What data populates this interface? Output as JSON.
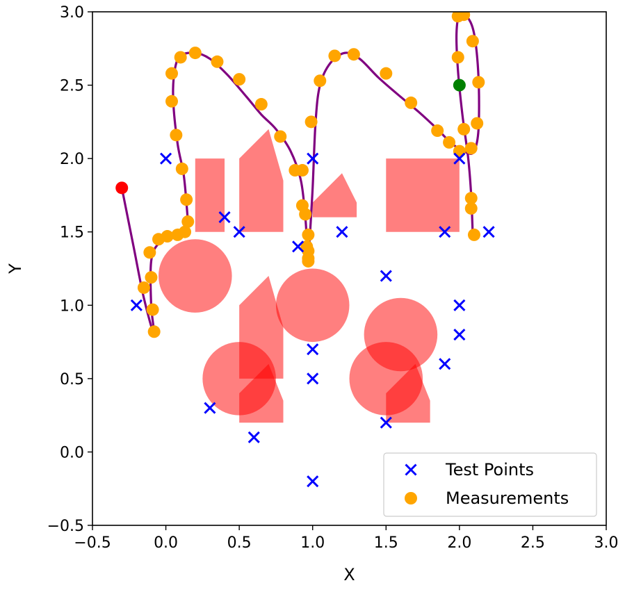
{
  "chart_data": {
    "type": "scatter",
    "title": "",
    "xlabel": "X",
    "ylabel": "Y",
    "xlim": [
      -0.5,
      3.0
    ],
    "ylim": [
      -0.5,
      3.0
    ],
    "xticks": [
      -0.5,
      0.0,
      0.5,
      1.0,
      1.5,
      2.0,
      2.5,
      3.0
    ],
    "yticks": [
      -0.5,
      0.0,
      0.5,
      1.0,
      1.5,
      2.0,
      2.5,
      3.0
    ],
    "xtick_labels": [
      "−0.5",
      "0.0",
      "0.5",
      "1.0",
      "1.5",
      "2.0",
      "2.5",
      "3.0"
    ],
    "ytick_labels": [
      "−0.5",
      "0.0",
      "0.5",
      "1.0",
      "1.5",
      "2.0",
      "2.5",
      "3.0"
    ],
    "grid": false,
    "legend": {
      "placement": "lower-right",
      "entries": [
        {
          "label": "Test Points",
          "marker": "x",
          "color": "#0000ff"
        },
        {
          "label": "Measurements",
          "marker": "o",
          "color": "#ffa500"
        }
      ]
    },
    "obstacle_color": "#ff0000",
    "path_color": "#800080",
    "start": {
      "x": -0.3,
      "y": 1.8,
      "color": "#ff0000"
    },
    "goal": {
      "x": 2.0,
      "y": 2.5,
      "color": "#008000"
    },
    "obstacles": [
      {
        "shape": "circle",
        "cx": 0.2,
        "cy": 1.2,
        "r": 0.25
      },
      {
        "shape": "circle",
        "cx": 1.0,
        "cy": 1.0,
        "r": 0.25
      },
      {
        "shape": "circle",
        "cx": 0.5,
        "cy": 0.5,
        "r": 0.25
      },
      {
        "shape": "circle",
        "cx": 1.6,
        "cy": 0.8,
        "r": 0.25
      },
      {
        "shape": "circle",
        "cx": 1.5,
        "cy": 0.5,
        "r": 0.25
      },
      {
        "shape": "polygon",
        "points": [
          [
            0.2,
            1.5
          ],
          [
            0.4,
            1.5
          ],
          [
            0.4,
            2.0
          ],
          [
            0.2,
            2.0
          ]
        ]
      },
      {
        "shape": "polygon",
        "points": [
          [
            0.5,
            1.5
          ],
          [
            0.8,
            1.5
          ],
          [
            0.8,
            1.85
          ],
          [
            0.7,
            2.2
          ],
          [
            0.6,
            2.1
          ],
          [
            0.5,
            2.0
          ]
        ]
      },
      {
        "shape": "polygon",
        "points": [
          [
            1.0,
            1.6
          ],
          [
            1.3,
            1.6
          ],
          [
            1.3,
            1.7
          ],
          [
            1.2,
            1.9
          ],
          [
            1.0,
            1.7
          ]
        ]
      },
      {
        "shape": "polygon",
        "points": [
          [
            1.5,
            1.5
          ],
          [
            2.0,
            1.5
          ],
          [
            2.0,
            2.0
          ],
          [
            1.5,
            2.0
          ]
        ]
      },
      {
        "shape": "polygon",
        "points": [
          [
            0.5,
            0.5
          ],
          [
            0.8,
            0.5
          ],
          [
            0.8,
            0.85
          ],
          [
            0.7,
            1.2
          ],
          [
            0.6,
            1.1
          ],
          [
            0.5,
            1.0
          ]
        ]
      },
      {
        "shape": "polygon",
        "points": [
          [
            0.5,
            0.2
          ],
          [
            0.8,
            0.2
          ],
          [
            0.8,
            0.35
          ],
          [
            0.7,
            0.6
          ],
          [
            0.6,
            0.5
          ],
          [
            0.5,
            0.4
          ]
        ]
      },
      {
        "shape": "polygon",
        "points": [
          [
            1.5,
            0.2
          ],
          [
            1.8,
            0.2
          ],
          [
            1.8,
            0.35
          ],
          [
            1.7,
            0.6
          ],
          [
            1.6,
            0.5
          ],
          [
            1.5,
            0.4
          ]
        ]
      }
    ],
    "test_points": [
      [
        0.0,
        2.0
      ],
      [
        1.0,
        2.0
      ],
      [
        2.0,
        2.0
      ],
      [
        0.4,
        1.6
      ],
      [
        0.5,
        1.5
      ],
      [
        0.9,
        1.4
      ],
      [
        1.2,
        1.5
      ],
      [
        1.9,
        1.5
      ],
      [
        2.2,
        1.5
      ],
      [
        1.5,
        1.2
      ],
      [
        -0.2,
        1.0
      ],
      [
        2.0,
        1.0
      ],
      [
        2.0,
        0.8
      ],
      [
        1.0,
        0.7
      ],
      [
        1.9,
        0.6
      ],
      [
        1.0,
        0.5
      ],
      [
        0.3,
        0.3
      ],
      [
        1.5,
        0.2
      ],
      [
        0.6,
        0.1
      ],
      [
        1.0,
        -0.2
      ]
    ],
    "path": [
      [
        -0.3,
        1.8
      ],
      [
        -0.22,
        1.4
      ],
      [
        -0.15,
        1.05
      ],
      [
        -0.08,
        0.8
      ],
      [
        -0.1,
        1.0
      ],
      [
        -0.1,
        1.3
      ],
      [
        -0.05,
        1.42
      ],
      [
        0.05,
        1.47
      ],
      [
        0.12,
        1.48
      ],
      [
        0.15,
        1.52
      ],
      [
        0.14,
        1.7
      ],
      [
        0.12,
        1.9
      ],
      [
        0.08,
        2.1
      ],
      [
        0.05,
        2.4
      ],
      [
        0.06,
        2.6
      ],
      [
        0.1,
        2.7
      ],
      [
        0.2,
        2.72
      ],
      [
        0.3,
        2.68
      ],
      [
        0.42,
        2.57
      ],
      [
        0.55,
        2.42
      ],
      [
        0.65,
        2.3
      ],
      [
        0.75,
        2.2
      ],
      [
        0.85,
        2.05
      ],
      [
        0.92,
        1.85
      ],
      [
        0.95,
        1.6
      ],
      [
        0.96,
        1.45
      ],
      [
        0.97,
        1.35
      ],
      [
        0.98,
        1.45
      ],
      [
        1.0,
        1.8
      ],
      [
        1.02,
        2.25
      ],
      [
        1.05,
        2.5
      ],
      [
        1.12,
        2.65
      ],
      [
        1.22,
        2.72
      ],
      [
        1.32,
        2.68
      ],
      [
        1.45,
        2.55
      ],
      [
        1.6,
        2.42
      ],
      [
        1.72,
        2.32
      ],
      [
        1.85,
        2.2
      ],
      [
        1.95,
        2.1
      ],
      [
        2.05,
        2.04
      ],
      [
        2.1,
        2.05
      ],
      [
        2.13,
        2.2
      ],
      [
        2.13,
        2.55
      ],
      [
        2.1,
        2.85
      ],
      [
        2.05,
        2.97
      ],
      [
        2.0,
        2.98
      ],
      [
        1.98,
        2.85
      ],
      [
        1.99,
        2.6
      ],
      [
        2.02,
        2.3
      ],
      [
        2.06,
        2.0
      ],
      [
        2.08,
        1.75
      ],
      [
        2.09,
        1.5
      ]
    ],
    "measurements": [
      [
        -0.08,
        0.82
      ],
      [
        -0.09,
        0.97
      ],
      [
        -0.1,
        1.19
      ],
      [
        -0.15,
        1.12
      ],
      [
        -0.11,
        1.36
      ],
      [
        -0.05,
        1.45
      ],
      [
        0.01,
        1.47
      ],
      [
        0.08,
        1.48
      ],
      [
        0.13,
        1.5
      ],
      [
        0.15,
        1.57
      ],
      [
        0.14,
        1.72
      ],
      [
        0.11,
        1.93
      ],
      [
        0.07,
        2.16
      ],
      [
        0.04,
        2.39
      ],
      [
        0.04,
        2.58
      ],
      [
        0.1,
        2.69
      ],
      [
        0.2,
        2.72
      ],
      [
        0.35,
        2.66
      ],
      [
        0.5,
        2.54
      ],
      [
        0.65,
        2.37
      ],
      [
        0.78,
        2.15
      ],
      [
        0.88,
        1.92
      ],
      [
        0.93,
        1.92
      ],
      [
        0.93,
        1.68
      ],
      [
        0.95,
        1.62
      ],
      [
        0.97,
        1.48
      ],
      [
        0.97,
        1.37
      ],
      [
        0.97,
        1.32
      ],
      [
        0.97,
        1.3
      ],
      [
        0.96,
        1.4
      ],
      [
        0.99,
        2.25
      ],
      [
        1.05,
        2.53
      ],
      [
        1.15,
        2.7
      ],
      [
        1.28,
        2.71
      ],
      [
        1.5,
        2.58
      ],
      [
        1.67,
        2.38
      ],
      [
        1.85,
        2.19
      ],
      [
        1.93,
        2.11
      ],
      [
        2.0,
        2.05
      ],
      [
        2.08,
        2.07
      ],
      [
        2.12,
        2.24
      ],
      [
        2.13,
        2.52
      ],
      [
        2.09,
        2.8
      ],
      [
        2.03,
        2.98
      ],
      [
        1.99,
        2.97
      ],
      [
        1.99,
        2.69
      ],
      [
        2.03,
        2.2
      ],
      [
        2.08,
        1.73
      ],
      [
        2.08,
        1.66
      ],
      [
        2.1,
        1.48
      ]
    ]
  }
}
